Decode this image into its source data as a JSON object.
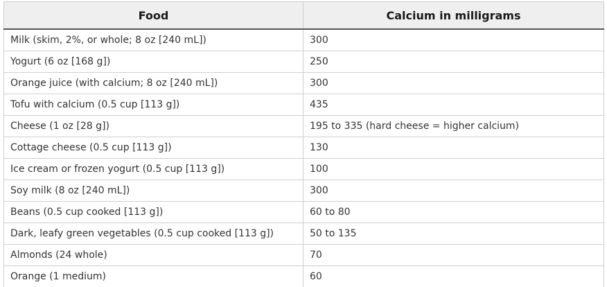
{
  "table": {
    "headers": [
      "Food",
      "Calcium in milligrams"
    ],
    "rows": [
      [
        "Milk (skim, 2%, or whole; 8 oz [240 mL])",
        "300"
      ],
      [
        "Yogurt (6 oz [168 g])",
        "250"
      ],
      [
        "Orange juice (with calcium; 8 oz [240 mL])",
        "300"
      ],
      [
        "Tofu with calcium (0.5 cup [113 g])",
        "435"
      ],
      [
        "Cheese (1 oz [28 g])",
        "195 to 335 (hard cheese = higher calcium)"
      ],
      [
        "Cottage cheese (0.5 cup [113 g])",
        "130"
      ],
      [
        "Ice cream or frozen yogurt (0.5 cup [113 g])",
        "100"
      ],
      [
        "Soy milk (8 oz [240 mL])",
        "300"
      ],
      [
        "Beans (0.5 cup cooked [113 g])",
        "60 to 80"
      ],
      [
        "Dark, leafy green vegetables (0.5 cup cooked [113 g])",
        "50 to 135"
      ],
      [
        "Almonds (24 whole)",
        "70"
      ],
      [
        "Orange (1 medium)",
        "60"
      ]
    ]
  },
  "colors": {
    "header_bg": "#efefef",
    "border": "#cfcfcf",
    "header_rule": "#555555",
    "text": "#333333"
  }
}
